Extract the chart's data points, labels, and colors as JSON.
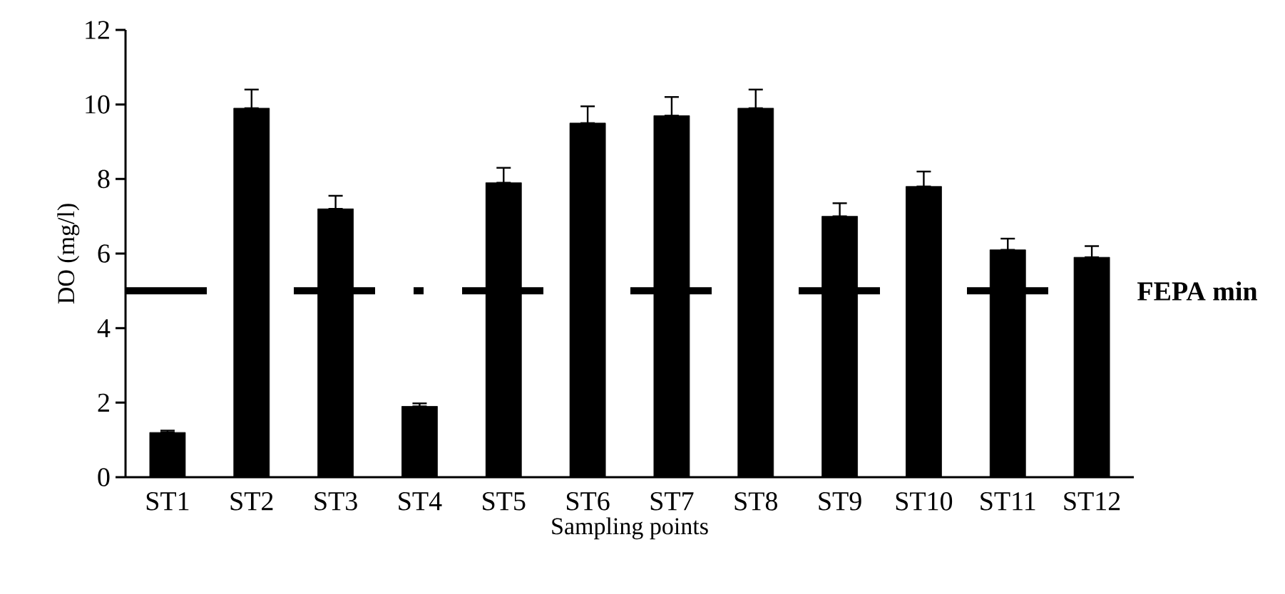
{
  "chart_data": {
    "type": "bar",
    "xlabel": "Sampling points",
    "ylabel": "DO (mg/l)",
    "categories": [
      "ST1",
      "ST2",
      "ST3",
      "ST4",
      "ST5",
      "ST6",
      "ST7",
      "ST8",
      "ST9",
      "ST10",
      "ST11",
      "ST12"
    ],
    "values": [
      1.2,
      9.9,
      7.2,
      1.9,
      7.9,
      9.5,
      9.7,
      9.9,
      7.0,
      7.8,
      6.1,
      5.9
    ],
    "color": "#000000",
    "errors": [
      [
        1.2,
        1.25
      ],
      [
        9.9,
        10.4
      ],
      [
        7.2,
        7.55
      ],
      [
        1.9,
        1.98
      ],
      [
        7.9,
        8.3
      ],
      [
        9.5,
        9.95
      ],
      [
        9.7,
        10.2
      ],
      [
        9.9,
        10.4
      ],
      [
        7.0,
        7.35
      ],
      [
        7.8,
        8.2
      ],
      [
        6.1,
        6.4
      ],
      [
        5.9,
        6.2
      ]
    ],
    "ylim": [
      0,
      12
    ],
    "yticks": [
      0,
      2,
      4,
      6,
      8,
      10,
      12
    ],
    "ref_lines": [
      {
        "axis": "y",
        "value": 5,
        "label": "FEPA min",
        "line_style": "dashed",
        "color": "#000000"
      }
    ]
  }
}
